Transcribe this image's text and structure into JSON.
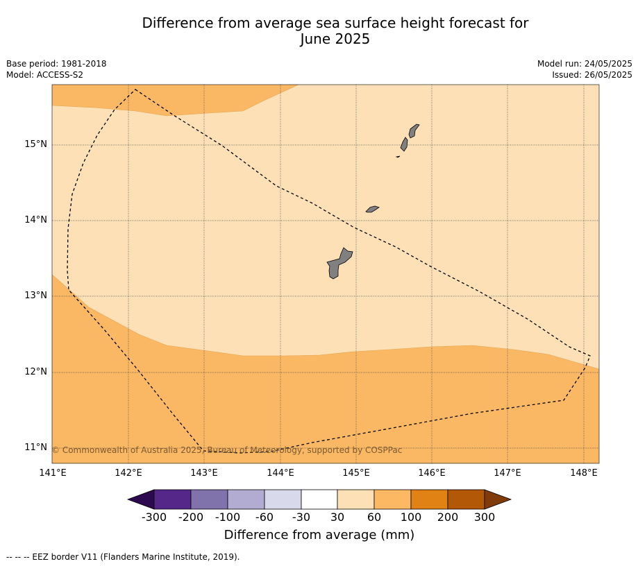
{
  "title": "Difference from average sea surface height forecast for June 2025",
  "title_line1": "Difference from average sea surface height forecast for",
  "title_line2": "June 2025",
  "meta": {
    "base_period": "Base period: 1981-2018",
    "model": "Model: ACCESS-S2",
    "model_run": "Model run: 24/05/2025",
    "issued": "Issued: 26/05/2025"
  },
  "map": {
    "lon_labels": [
      "141°E",
      "142°E",
      "143°E",
      "144°E",
      "145°E",
      "146°E",
      "147°E",
      "148°E"
    ],
    "lat_labels": [
      "15°N",
      "14°N",
      "13°N",
      "12°N",
      "11°N"
    ],
    "copyright": "© Commonwealth of Australia 2025, Bureau of Meteorology, supported by COSPPac",
    "colors": {
      "land": "#808080",
      "light_orange": "#fde0b6",
      "mid_orange": "#fab764"
    },
    "zones": [
      "30 to 60",
      "60 to 100"
    ]
  },
  "colorbar": {
    "title": "Difference from average (mm)",
    "labels": [
      "-300",
      "-200",
      "-100",
      "-60",
      "-30",
      "30",
      "60",
      "100",
      "200",
      "300"
    ],
    "colors": [
      "#2d0a4f",
      "#542788",
      "#8073ac",
      "#b2abd2",
      "#d8daeb",
      "#ffffff",
      "#fee0b6",
      "#fdb863",
      "#e08214",
      "#b35806",
      "#7f3b08"
    ]
  },
  "footer": "--  --  -- EEZ border V11 (Flanders Marine Institute, 2019)."
}
